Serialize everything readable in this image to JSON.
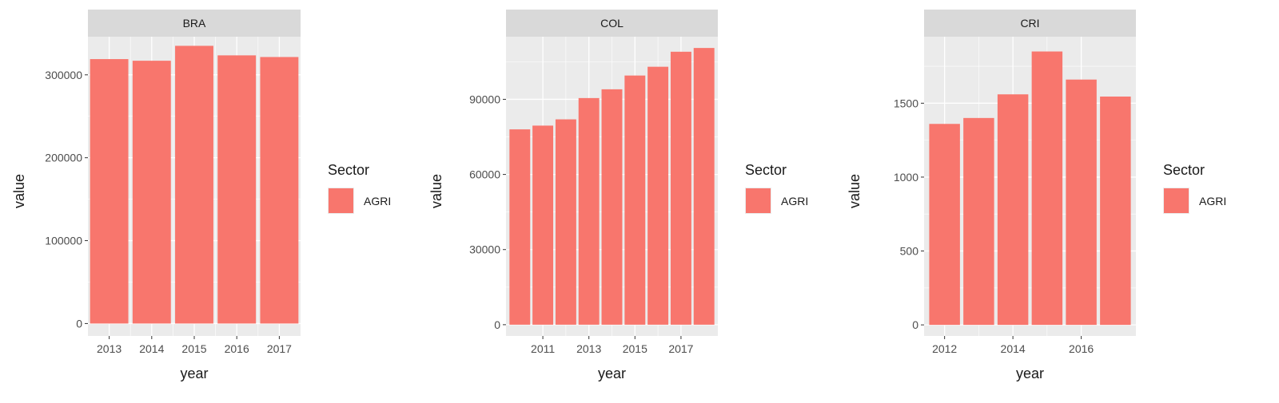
{
  "colors": {
    "bar": "#F8766D",
    "panel_bg": "#EBEBEB",
    "grid_major": "#FFFFFF",
    "strip_bg": "#D9D9D9",
    "text": "#1A1A1A",
    "tick_text": "#4D4D4D"
  },
  "chart_data": [
    {
      "type": "bar",
      "facet": "BRA",
      "xlabel": "year",
      "ylabel": "value",
      "legend": {
        "title": "Sector",
        "entries": [
          "AGRI"
        ],
        "placement": "right"
      },
      "x": [
        2013,
        2014,
        2015,
        2016,
        2017
      ],
      "xlim": [
        2012.5,
        2017.5
      ],
      "xticks": [
        2013,
        2014,
        2015,
        2016,
        2017
      ],
      "xtick_labels": [
        "2013",
        "2014",
        "2015",
        "2016",
        "2017"
      ],
      "series": [
        {
          "name": "AGRI",
          "values": [
            319000,
            317000,
            335000,
            323500,
            321500
          ]
        }
      ],
      "ylim": [
        -15000,
        346000
      ],
      "yticks": [
        0,
        100000,
        200000,
        300000
      ],
      "ytick_labels": [
        "0",
        "100000",
        "200000",
        "300000"
      ]
    },
    {
      "type": "bar",
      "facet": "COL",
      "xlabel": "year",
      "ylabel": "value",
      "legend": {
        "title": "Sector",
        "entries": [
          "AGRI"
        ],
        "placement": "right"
      },
      "x": [
        2010,
        2011,
        2012,
        2013,
        2014,
        2015,
        2016,
        2017,
        2018
      ],
      "xlim": [
        2009.4,
        2018.6
      ],
      "xticks": [
        2011,
        2013,
        2015,
        2017
      ],
      "xtick_labels": [
        "2011",
        "2013",
        "2015",
        "2017"
      ],
      "series": [
        {
          "name": "AGRI",
          "values": [
            78000,
            79500,
            82000,
            90500,
            94000,
            99500,
            103000,
            109000,
            110500
          ]
        }
      ],
      "ylim": [
        -4500,
        115000
      ],
      "yticks": [
        0,
        30000,
        60000,
        90000
      ],
      "ytick_labels": [
        "0",
        "30000",
        "60000",
        "90000"
      ]
    },
    {
      "type": "bar",
      "facet": "CRI",
      "xlabel": "year",
      "ylabel": "value",
      "legend": {
        "title": "Sector",
        "entries": [
          "AGRI"
        ],
        "placement": "right"
      },
      "x": [
        2012,
        2013,
        2014,
        2015,
        2016,
        2017
      ],
      "xlim": [
        2011.4,
        2017.6
      ],
      "xticks": [
        2012,
        2014,
        2016
      ],
      "xtick_labels": [
        "2012",
        "2014",
        "2016"
      ],
      "series": [
        {
          "name": "AGRI",
          "values": [
            1360,
            1400,
            1560,
            1850,
            1660,
            1545
          ]
        }
      ],
      "ylim": [
        -75,
        1950
      ],
      "yticks": [
        0,
        500,
        1000,
        1500
      ],
      "ytick_labels": [
        "0",
        "500",
        "1000",
        "1500"
      ]
    }
  ]
}
